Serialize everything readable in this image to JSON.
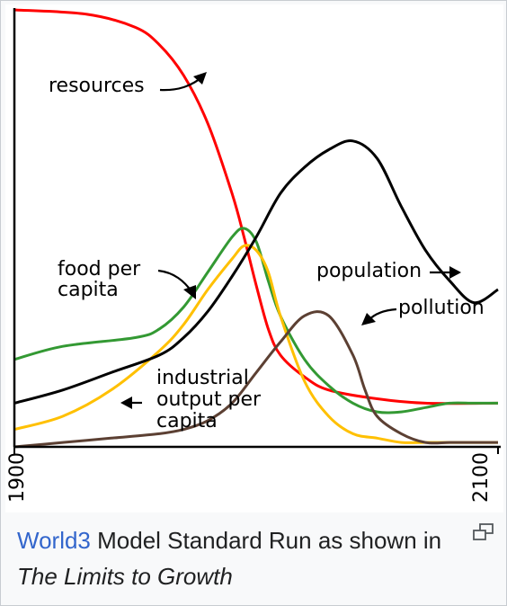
{
  "chart_data": {
    "type": "line",
    "x_range": [
      1900,
      2100
    ],
    "y_range": [
      0,
      1
    ],
    "tick_labels": [
      "1900",
      "2100"
    ],
    "grid": false,
    "series": [
      {
        "name": "resources",
        "color": "#ff0000",
        "x": [
          1900,
          1930,
          1950,
          1960,
          1970,
          1980,
          1990,
          1995,
          2000,
          2005,
          2010,
          2020,
          2030,
          2050,
          2070,
          2100
        ],
        "y": [
          1.0,
          0.99,
          0.96,
          0.92,
          0.85,
          0.74,
          0.58,
          0.48,
          0.37,
          0.27,
          0.21,
          0.16,
          0.13,
          0.11,
          0.1,
          0.1
        ]
      },
      {
        "name": "food per capita",
        "color": "#339933",
        "x": [
          1900,
          1920,
          1950,
          1960,
          1970,
          1980,
          1990,
          1995,
          2000,
          2005,
          2010,
          2020,
          2030,
          2040,
          2050,
          2060,
          2070,
          2080,
          2090,
          2100
        ],
        "y": [
          0.2,
          0.23,
          0.25,
          0.27,
          0.32,
          0.4,
          0.48,
          0.5,
          0.47,
          0.38,
          0.3,
          0.2,
          0.14,
          0.1,
          0.08,
          0.08,
          0.09,
          0.1,
          0.1,
          0.1
        ]
      },
      {
        "name": "industrial output per capita",
        "color": "#ffc000",
        "x": [
          1900,
          1920,
          1940,
          1960,
          1970,
          1980,
          1990,
          1995,
          2000,
          2005,
          2010,
          2020,
          2030,
          2040,
          2050,
          2060,
          2070,
          2080,
          2090,
          2100
        ],
        "y": [
          0.04,
          0.07,
          0.13,
          0.22,
          0.28,
          0.36,
          0.43,
          0.46,
          0.45,
          0.4,
          0.3,
          0.15,
          0.07,
          0.03,
          0.02,
          0.01,
          0.01,
          0.01,
          0.01,
          0.01
        ]
      },
      {
        "name": "population",
        "color": "#000000",
        "x": [
          1900,
          1920,
          1940,
          1960,
          1970,
          1980,
          1990,
          2000,
          2010,
          2020,
          2030,
          2040,
          2050,
          2060,
          2070,
          2080,
          2090,
          2100
        ],
        "y": [
          0.1,
          0.13,
          0.17,
          0.21,
          0.25,
          0.31,
          0.39,
          0.48,
          0.58,
          0.64,
          0.68,
          0.7,
          0.66,
          0.55,
          0.45,
          0.38,
          0.33,
          0.36
        ]
      },
      {
        "name": "pollution",
        "color": "#5c4033",
        "x": [
          1900,
          1920,
          1940,
          1960,
          1970,
          1980,
          1990,
          2000,
          2010,
          2020,
          2030,
          2040,
          2045,
          2050,
          2060,
          2070,
          2080,
          2090,
          2100
        ],
        "y": [
          0.0,
          0.01,
          0.02,
          0.03,
          0.04,
          0.06,
          0.1,
          0.17,
          0.24,
          0.3,
          0.3,
          0.21,
          0.13,
          0.07,
          0.03,
          0.01,
          0.01,
          0.01,
          0.01
        ]
      }
    ],
    "annotations": {
      "resources": "resources",
      "food": [
        "food per",
        "capita"
      ],
      "industrial": [
        "industrial",
        "output per",
        "capita"
      ],
      "population": "population",
      "pollution": "pollution"
    }
  },
  "caption": {
    "link_text": "World3",
    "text_middle": " Model Standard Run as shown in ",
    "book_title": "The Limits to Growth"
  },
  "enlarge_icon": "enlarge-icon"
}
